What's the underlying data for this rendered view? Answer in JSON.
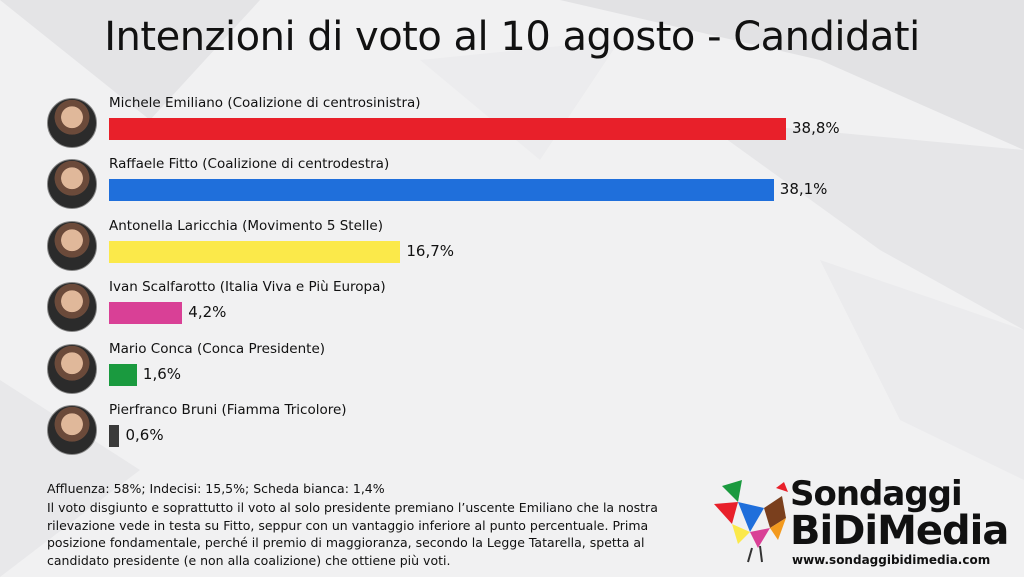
{
  "chart_data": {
    "type": "bar",
    "title": "Intenzioni di voto al 10 agosto - Candidati",
    "categories": [
      "Michele Emiliano (Coalizione di centrosinistra)",
      "Raffaele Fitto (Coalizione di centrodestra)",
      "Antonella Laricchia (Movimento 5 Stelle)",
      "Ivan Scalfarotto (Italia Viva e Più Europa)",
      "Mario Conca (Conca Presidente)",
      "Pierfranco Bruni (Fiamma Tricolore)"
    ],
    "values": [
      38.8,
      38.1,
      16.7,
      4.2,
      1.6,
      0.6
    ],
    "value_labels": [
      "38,8%",
      "38,1%",
      "16,7%",
      "4,2%",
      "1,6%",
      "0,6%"
    ],
    "colors": [
      "#e8202a",
      "#1f6fdb",
      "#fbe94a",
      "#d94096",
      "#1a9a3f",
      "#3a3a3a"
    ],
    "orientation": "horizontal",
    "xlim": [
      0,
      38.8
    ],
    "grid": false,
    "legend": "none"
  },
  "footer": {
    "turnout": "Affluenza: 58%; Indecisi: 15,5%; Scheda bianca: 1,4%",
    "note": "Il voto disgiunto e soprattutto il voto al solo presidente premiano l’uscente Emiliano che la nostra rilevazione vede in testa su Fitto, seppur con un vantaggio inferiore al punto percentuale. Prima posizione fondamentale, perché il premio di maggioranza, secondo la Legge Tatarella, spetta al candidato presidente (e non alla coalizione) che ottiene più voti."
  },
  "logo": {
    "line1": "Sondaggi",
    "line2": "BiDiMedia",
    "url": "www.sondaggibidimedia.com"
  }
}
